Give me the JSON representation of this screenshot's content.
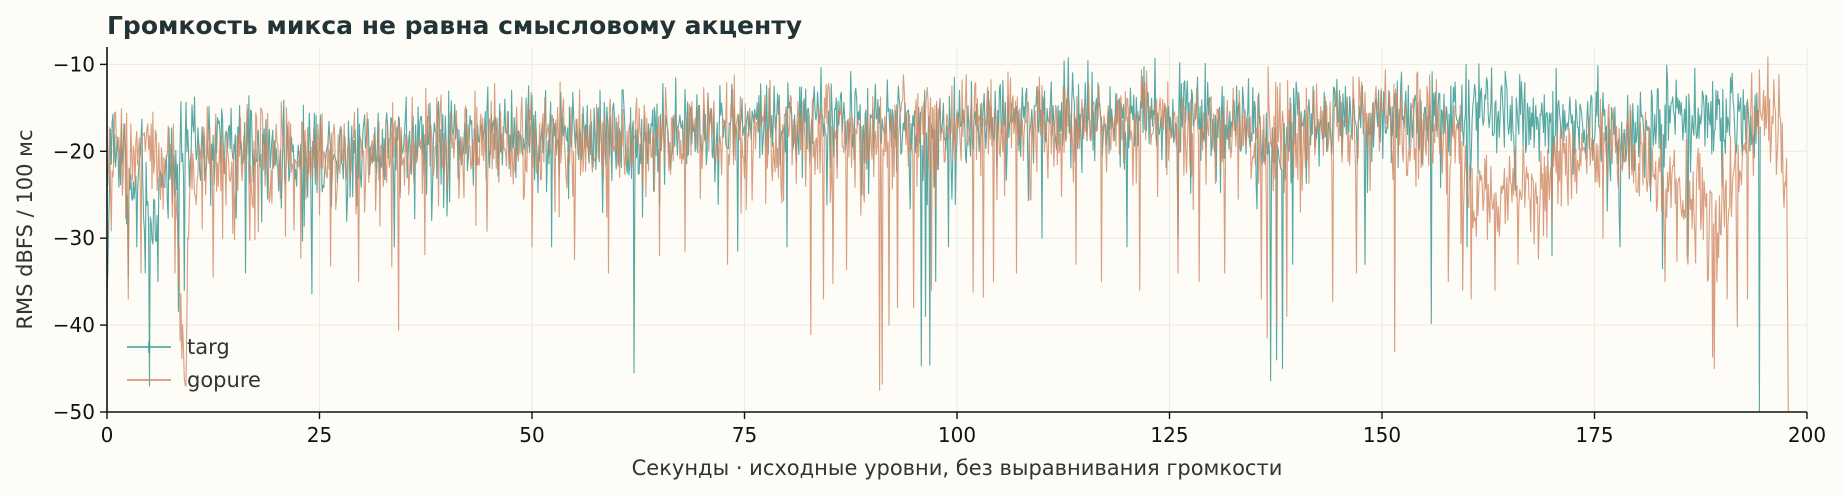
{
  "chart_data": {
    "type": "line",
    "title": "Громкость микса не равна смысловому акценту",
    "xlabel": "Секунды · исходные уровни, без выравнивания громкости",
    "ylabel": "RMS dBFS / 100 мс",
    "xlim": [
      0,
      200
    ],
    "ylim": [
      -50,
      -8
    ],
    "xticks": [
      0,
      25,
      50,
      75,
      100,
      125,
      150,
      175,
      200
    ],
    "yticks": [
      -50,
      -40,
      -30,
      -20,
      -10
    ],
    "grid": true,
    "legend_position": "lower-left",
    "step_seconds": 0.1,
    "series": [
      {
        "name": "targ",
        "color": "#3f9c97",
        "anchors": [
          [
            0,
            -38
          ],
          [
            0.4,
            -18
          ],
          [
            1,
            -20
          ],
          [
            2,
            -19
          ],
          [
            3,
            -26
          ],
          [
            4,
            -21
          ],
          [
            5,
            -30
          ],
          [
            7,
            -21
          ],
          [
            10,
            -20
          ],
          [
            15,
            -19
          ],
          [
            20,
            -21
          ],
          [
            25,
            -20
          ],
          [
            30,
            -19
          ],
          [
            35,
            -18.5
          ],
          [
            40,
            -18
          ],
          [
            45,
            -18.5
          ],
          [
            50,
            -18
          ],
          [
            55,
            -18
          ],
          [
            60,
            -17.5
          ],
          [
            62,
            -19
          ],
          [
            65,
            -18
          ],
          [
            70,
            -17.5
          ],
          [
            75,
            -17
          ],
          [
            80,
            -16.5
          ],
          [
            85,
            -16.5
          ],
          [
            90,
            -17
          ],
          [
            95,
            -17
          ],
          [
            97,
            -19
          ],
          [
            100,
            -16.5
          ],
          [
            105,
            -16
          ],
          [
            110,
            -16
          ],
          [
            115,
            -16
          ],
          [
            120,
            -16
          ],
          [
            125,
            -15.5
          ],
          [
            130,
            -15.5
          ],
          [
            135,
            -17
          ],
          [
            137,
            -21
          ],
          [
            140,
            -17
          ],
          [
            145,
            -15.5
          ],
          [
            150,
            -16
          ],
          [
            155,
            -15.5
          ],
          [
            160,
            -16
          ],
          [
            165,
            -16.5
          ],
          [
            170,
            -16
          ],
          [
            175,
            -17
          ],
          [
            180,
            -17
          ],
          [
            185,
            -16
          ],
          [
            190,
            -15.5
          ],
          [
            193,
            -16
          ],
          [
            194.5,
            -16
          ]
        ],
        "noise": 5,
        "dips": [
          [
            2.5,
            -34.5
          ],
          [
            3.5,
            -31
          ],
          [
            4.5,
            -34
          ],
          [
            5,
            -47
          ],
          [
            6,
            -35
          ],
          [
            8.4,
            -38.4
          ],
          [
            9.1,
            -36
          ],
          [
            16.3,
            -34
          ],
          [
            24.1,
            -36.4
          ],
          [
            33.8,
            -31
          ],
          [
            52.3,
            -31
          ],
          [
            62,
            -45.5
          ],
          [
            74.2,
            -31.5
          ],
          [
            80,
            -31
          ],
          [
            95.8,
            -44.7
          ],
          [
            96.3,
            -39
          ],
          [
            96.8,
            -44.6
          ],
          [
            97.5,
            -35
          ],
          [
            99,
            -31
          ],
          [
            110,
            -30
          ],
          [
            120,
            -31
          ],
          [
            126,
            -30
          ],
          [
            136.9,
            -46.4
          ],
          [
            137.6,
            -44
          ],
          [
            138.3,
            -45
          ],
          [
            139.5,
            -33
          ],
          [
            148,
            -33
          ],
          [
            155.8,
            -39.8
          ],
          [
            160,
            -31
          ],
          [
            170,
            -32
          ],
          [
            178,
            -31
          ],
          [
            183,
            -33.5
          ],
          [
            186,
            -32
          ],
          [
            194.4,
            -50
          ]
        ]
      },
      {
        "name": "gopure",
        "color": "#d08660",
        "anchors": [
          [
            0,
            -25
          ],
          [
            1,
            -19
          ],
          [
            3,
            -20
          ],
          [
            6,
            -21
          ],
          [
            8,
            -22
          ],
          [
            9.2,
            -50
          ],
          [
            9.7,
            -22
          ],
          [
            12,
            -21
          ],
          [
            15,
            -21
          ],
          [
            20,
            -20
          ],
          [
            25,
            -20
          ],
          [
            30,
            -20
          ],
          [
            35,
            -19
          ],
          [
            40,
            -19
          ],
          [
            45,
            -19
          ],
          [
            50,
            -18.5
          ],
          [
            55,
            -18.5
          ],
          [
            60,
            -18.5
          ],
          [
            65,
            -18.5
          ],
          [
            70,
            -18
          ],
          [
            75,
            -17.5
          ],
          [
            80,
            -18
          ],
          [
            85,
            -18
          ],
          [
            90,
            -19
          ],
          [
            92,
            -18
          ],
          [
            95,
            -18
          ],
          [
            100,
            -17
          ],
          [
            105,
            -17
          ],
          [
            110,
            -17
          ],
          [
            115,
            -17
          ],
          [
            120,
            -16.5
          ],
          [
            125,
            -16.5
          ],
          [
            130,
            -17
          ],
          [
            135,
            -18
          ],
          [
            140,
            -18
          ],
          [
            145,
            -16.5
          ],
          [
            150,
            -16.5
          ],
          [
            155,
            -17
          ],
          [
            158,
            -18
          ],
          [
            160,
            -24
          ],
          [
            165,
            -25
          ],
          [
            170,
            -23
          ],
          [
            172,
            -19
          ],
          [
            175,
            -19
          ],
          [
            180,
            -20
          ],
          [
            183,
            -24
          ],
          [
            186,
            -25
          ],
          [
            188,
            -26
          ],
          [
            190,
            -27
          ],
          [
            192,
            -21
          ],
          [
            194,
            -16
          ],
          [
            196,
            -15
          ],
          [
            197,
            -17
          ],
          [
            197.6,
            -21
          ],
          [
            197.8,
            -50
          ]
        ],
        "noise": 5.5,
        "dips": [
          [
            2.5,
            -37
          ],
          [
            4,
            -34
          ],
          [
            8,
            -34
          ],
          [
            12.5,
            -34.5
          ],
          [
            22.8,
            -32.3
          ],
          [
            26.3,
            -33.2
          ],
          [
            29.6,
            -35
          ],
          [
            33.5,
            -33.3
          ],
          [
            34.3,
            -40.6
          ],
          [
            37.4,
            -31.9
          ],
          [
            44.7,
            -29.2
          ],
          [
            50,
            -31
          ],
          [
            55,
            -32.5
          ],
          [
            59,
            -34
          ],
          [
            65,
            -32
          ],
          [
            68,
            -31.5
          ],
          [
            73,
            -33
          ],
          [
            82.8,
            -41.1
          ],
          [
            84.3,
            -37
          ],
          [
            85.4,
            -35.2
          ],
          [
            87,
            -33.6
          ],
          [
            90.9,
            -47.5
          ],
          [
            91.2,
            -46.8
          ],
          [
            92,
            -40
          ],
          [
            93,
            -38
          ],
          [
            94.9,
            -38
          ],
          [
            97,
            -36
          ],
          [
            101.9,
            -36.2
          ],
          [
            103.1,
            -36.8
          ],
          [
            104.3,
            -35
          ],
          [
            107,
            -34
          ],
          [
            114,
            -33
          ],
          [
            117,
            -35
          ],
          [
            121.5,
            -36
          ],
          [
            126,
            -34
          ],
          [
            128.5,
            -35
          ],
          [
            131.5,
            -34
          ],
          [
            135.8,
            -37
          ],
          [
            136.5,
            -41.5
          ],
          [
            137.6,
            -40
          ],
          [
            138.8,
            -39
          ],
          [
            144.2,
            -37.3
          ],
          [
            147,
            -34
          ],
          [
            151.5,
            -43.1
          ],
          [
            157.8,
            -35
          ],
          [
            159.5,
            -36
          ],
          [
            160.5,
            -37
          ],
          [
            163.3,
            -36
          ],
          [
            166,
            -33
          ],
          [
            176,
            -30
          ],
          [
            183.3,
            -35
          ],
          [
            186,
            -33
          ],
          [
            188.9,
            -43.7
          ],
          [
            189.1,
            -45
          ],
          [
            190.6,
            -37
          ],
          [
            191.8,
            -40.2
          ],
          [
            193,
            -37
          ]
        ]
      }
    ]
  }
}
